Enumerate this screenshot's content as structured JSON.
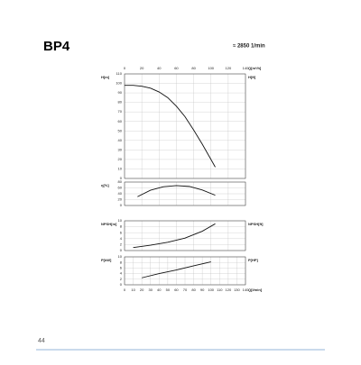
{
  "header": {
    "title": "BP4",
    "speed": "≈ 2850 1/min"
  },
  "footer": {
    "page": "44"
  },
  "chart_data": [
    {
      "type": "line",
      "y_label": "H[m]",
      "y2_label": "H[ft]",
      "x_label": "Q[m³/h]",
      "xlim": [
        0,
        140
      ],
      "xticks": [
        0,
        20,
        40,
        60,
        80,
        100,
        120,
        140
      ],
      "ylim": [
        0,
        110
      ],
      "yticks": [
        0,
        10,
        20,
        30,
        40,
        50,
        60,
        70,
        80,
        90,
        100,
        110
      ],
      "x": [
        0,
        10,
        20,
        30,
        40,
        50,
        60,
        70,
        80,
        90,
        100,
        105
      ],
      "series": [
        {
          "color": "#111111",
          "values": [
            98,
            98,
            97,
            95,
            91,
            85,
            76,
            65,
            51,
            36,
            20,
            12
          ]
        }
      ],
      "grid": true
    },
    {
      "type": "line",
      "y_label": "η[%]",
      "xlim": [
        0,
        140
      ],
      "ylim": [
        0,
        80
      ],
      "yticks": [
        0,
        20,
        40,
        60,
        80
      ],
      "x": [
        15,
        30,
        45,
        60,
        75,
        90,
        105
      ],
      "series": [
        {
          "color": "#111111",
          "values": [
            30,
            52,
            64,
            68,
            65,
            53,
            35
          ]
        }
      ],
      "grid": true
    },
    {
      "type": "line",
      "y_label": "NPSH[m]",
      "y2_label": "NPSH[ft]",
      "xlim": [
        0,
        140
      ],
      "ylim": [
        0,
        10
      ],
      "yticks": [
        0,
        2,
        4,
        6,
        8,
        10
      ],
      "x": [
        10,
        30,
        50,
        70,
        90,
        105
      ],
      "series": [
        {
          "color": "#111111",
          "values": [
            1,
            1.8,
            2.8,
            4.2,
            6.5,
            9
          ]
        }
      ],
      "grid": true
    },
    {
      "type": "line",
      "y_label": "P[kW]",
      "y2_label": "P[HP]",
      "x_label": "Q[l/min]",
      "xlim": [
        0,
        140
      ],
      "xticks": [
        0,
        10,
        20,
        30,
        40,
        50,
        60,
        70,
        80,
        90,
        100,
        110,
        120,
        130,
        140
      ],
      "ylim": [
        0,
        10
      ],
      "yticks": [
        0,
        2,
        4,
        6,
        8,
        10
      ],
      "x": [
        20,
        40,
        60,
        80,
        100
      ],
      "series": [
        {
          "color": "#111111",
          "values": [
            2.5,
            4,
            5.3,
            6.8,
            8.2
          ]
        }
      ],
      "grid": true
    }
  ]
}
